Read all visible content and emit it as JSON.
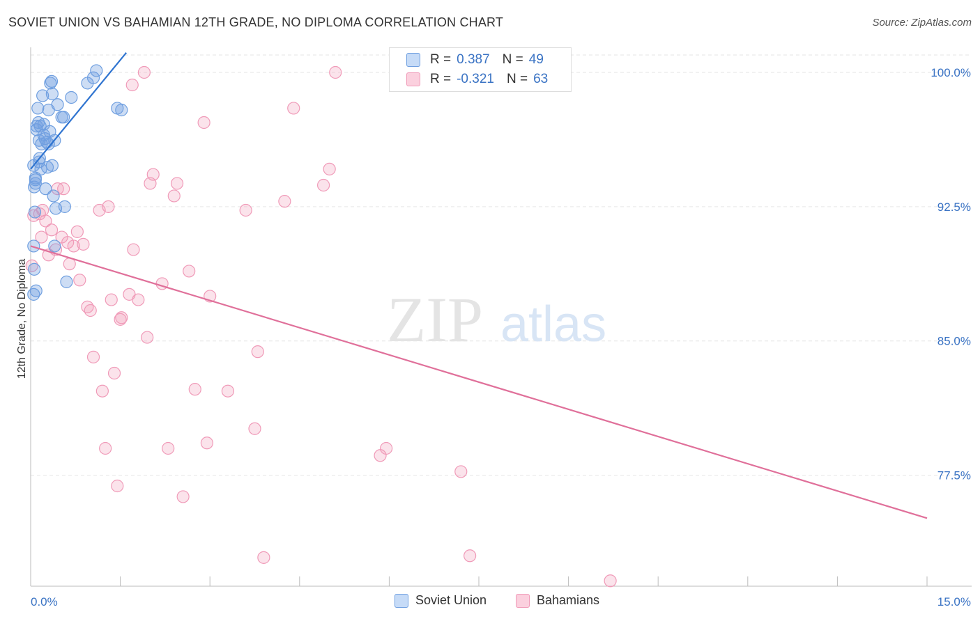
{
  "title": "SOVIET UNION VS BAHAMIAN 12TH GRADE, NO DIPLOMA CORRELATION CHART",
  "source": "Source: ZipAtlas.com",
  "watermark": {
    "zip": "ZIP",
    "atlas": "atlas"
  },
  "legend": {
    "r_label": "R =",
    "n_label": "N =",
    "rows": [
      {
        "r": "0.387",
        "n": "49"
      },
      {
        "r": "-0.321",
        "n": "63"
      }
    ]
  },
  "chart_data": {
    "type": "scatter",
    "title": "SOVIET UNION VS BAHAMIAN 12TH GRADE, NO DIPLOMA CORRELATION CHART",
    "xlabel": "",
    "ylabel": "12th Grade, No Diploma",
    "xlim": [
      0,
      15
    ],
    "ylim": [
      71.3,
      101.4
    ],
    "x_tick_labels": [
      "0.0%",
      "15.0%"
    ],
    "y_ticks": [
      77.5,
      85.0,
      92.5,
      100.0
    ],
    "y_tick_labels": [
      "77.5%",
      "85.0%",
      "92.5%",
      "100.0%"
    ],
    "grid": true,
    "colors": {
      "soviet": "#6f9fe0",
      "soviet_line": "#2f74d0",
      "bahamian": "#f09ab8",
      "bahamian_line": "#e0709a"
    },
    "series": [
      {
        "name": "Soviet Union",
        "r": 0.387,
        "n": 49,
        "trend": [
          [
            0.0,
            94.6
          ],
          [
            1.6,
            101.1
          ]
        ],
        "points": [
          [
            0.05,
            94.8
          ],
          [
            0.08,
            93.8
          ],
          [
            0.1,
            96.8
          ],
          [
            0.06,
            93.6
          ],
          [
            0.07,
            92.2
          ],
          [
            0.09,
            87.8
          ],
          [
            0.05,
            87.6
          ],
          [
            0.06,
            89.0
          ],
          [
            0.05,
            90.3
          ],
          [
            0.08,
            94.1
          ],
          [
            0.1,
            97.0
          ],
          [
            0.12,
            98.0
          ],
          [
            0.14,
            96.2
          ],
          [
            0.15,
            95.2
          ],
          [
            0.17,
            94.6
          ],
          [
            0.18,
            96.0
          ],
          [
            0.2,
            98.7
          ],
          [
            0.22,
            97.1
          ],
          [
            0.24,
            96.3
          ],
          [
            0.25,
            93.5
          ],
          [
            0.27,
            96.1
          ],
          [
            0.28,
            94.7
          ],
          [
            0.3,
            97.9
          ],
          [
            0.32,
            96.7
          ],
          [
            0.33,
            99.4
          ],
          [
            0.35,
            99.5
          ],
          [
            0.36,
            98.8
          ],
          [
            0.38,
            93.1
          ],
          [
            0.4,
            96.2
          ],
          [
            0.42,
            92.4
          ],
          [
            0.45,
            98.2
          ],
          [
            0.52,
            97.5
          ],
          [
            0.55,
            97.5
          ],
          [
            0.57,
            92.5
          ],
          [
            0.6,
            88.3
          ],
          [
            0.68,
            98.6
          ],
          [
            0.95,
            99.4
          ],
          [
            1.05,
            99.7
          ],
          [
            1.1,
            100.1
          ],
          [
            1.45,
            98.0
          ],
          [
            1.52,
            97.9
          ],
          [
            0.14,
            95.0
          ],
          [
            0.16,
            97.0
          ],
          [
            0.22,
            96.5
          ],
          [
            0.3,
            96.0
          ],
          [
            0.36,
            94.8
          ],
          [
            0.4,
            90.3
          ],
          [
            0.13,
            97.2
          ],
          [
            0.08,
            94.0
          ]
        ]
      },
      {
        "name": "Bahamians",
        "r": -0.321,
        "n": 63,
        "trend": [
          [
            0.0,
            90.3
          ],
          [
            15.0,
            75.1
          ]
        ],
        "points": [
          [
            0.02,
            89.2
          ],
          [
            0.15,
            92.1
          ],
          [
            0.18,
            90.8
          ],
          [
            0.2,
            92.3
          ],
          [
            0.25,
            91.7
          ],
          [
            0.3,
            89.8
          ],
          [
            0.35,
            91.2
          ],
          [
            0.42,
            90.1
          ],
          [
            0.45,
            93.5
          ],
          [
            0.52,
            90.8
          ],
          [
            0.55,
            93.5
          ],
          [
            0.62,
            90.5
          ],
          [
            0.72,
            90.3
          ],
          [
            0.78,
            91.1
          ],
          [
            0.82,
            88.4
          ],
          [
            0.88,
            90.4
          ],
          [
            0.95,
            86.9
          ],
          [
            1.0,
            86.7
          ],
          [
            1.05,
            84.1
          ],
          [
            1.15,
            92.3
          ],
          [
            1.2,
            82.2
          ],
          [
            1.25,
            79.0
          ],
          [
            1.3,
            92.5
          ],
          [
            1.35,
            87.3
          ],
          [
            1.4,
            83.2
          ],
          [
            1.45,
            76.9
          ],
          [
            1.5,
            86.2
          ],
          [
            1.52,
            86.3
          ],
          [
            1.65,
            87.6
          ],
          [
            1.7,
            99.3
          ],
          [
            1.72,
            90.1
          ],
          [
            1.8,
            87.3
          ],
          [
            1.9,
            100.0
          ],
          [
            1.95,
            85.2
          ],
          [
            2.0,
            93.8
          ],
          [
            2.05,
            94.3
          ],
          [
            2.2,
            88.2
          ],
          [
            2.3,
            79.0
          ],
          [
            2.4,
            93.1
          ],
          [
            2.45,
            93.8
          ],
          [
            2.55,
            76.3
          ],
          [
            2.65,
            88.9
          ],
          [
            2.75,
            82.3
          ],
          [
            2.9,
            97.2
          ],
          [
            2.95,
            79.3
          ],
          [
            3.0,
            87.5
          ],
          [
            3.3,
            82.2
          ],
          [
            3.6,
            92.3
          ],
          [
            3.75,
            80.1
          ],
          [
            3.8,
            84.4
          ],
          [
            3.9,
            72.9
          ],
          [
            4.25,
            92.8
          ],
          [
            4.4,
            98.0
          ],
          [
            4.9,
            93.7
          ],
          [
            5.0,
            94.6
          ],
          [
            5.1,
            100.0
          ],
          [
            5.85,
            78.6
          ],
          [
            5.95,
            79.0
          ],
          [
            7.2,
            77.7
          ],
          [
            7.35,
            73.0
          ],
          [
            9.7,
            71.6
          ],
          [
            0.65,
            89.3
          ],
          [
            0.05,
            92.0
          ]
        ]
      }
    ]
  },
  "bottom_legend": [
    {
      "label": "Soviet Union"
    },
    {
      "label": "Bahamians"
    }
  ]
}
